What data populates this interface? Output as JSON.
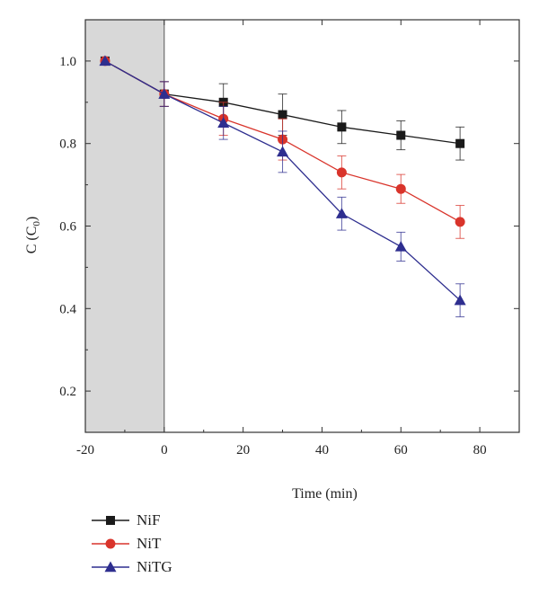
{
  "chart_data": {
    "type": "line",
    "xlabel": "Time (min)",
    "ylabel_main": "C (C",
    "ylabel_sub": "0",
    "ylabel_close": ")",
    "xlim": [
      -20,
      90
    ],
    "ylim": [
      0.1,
      1.1
    ],
    "xticks": [
      -20,
      0,
      20,
      40,
      60,
      80
    ],
    "xtick_labels": [
      "-20",
      "0",
      "20",
      "40",
      "60",
      "80"
    ],
    "yticks": [
      0.2,
      0.4,
      0.6,
      0.8,
      1.0
    ],
    "ytick_labels": [
      "0.2",
      "0.4",
      "0.6",
      "0.8",
      "1.0"
    ],
    "shaded_region": [
      -20,
      0
    ],
    "shaded_color": "#d8d8d8",
    "legend_position": "bottom-left",
    "x": [
      -15,
      0,
      15,
      30,
      45,
      60,
      75
    ],
    "series": [
      {
        "name": "NiF",
        "marker": "square",
        "color": "#1a1a1a",
        "values": [
          1.0,
          0.92,
          0.9,
          0.87,
          0.84,
          0.82,
          0.8
        ],
        "errors": [
          0.0,
          0.03,
          0.045,
          0.05,
          0.04,
          0.035,
          0.04
        ]
      },
      {
        "name": "NiT",
        "marker": "circle",
        "color": "#d9342b",
        "values": [
          1.0,
          0.92,
          0.86,
          0.81,
          0.73,
          0.69,
          0.61
        ],
        "errors": [
          0.0,
          0.03,
          0.04,
          0.05,
          0.04,
          0.035,
          0.04
        ]
      },
      {
        "name": "NiTG",
        "marker": "triangle",
        "color": "#2e2e8f",
        "values": [
          1.0,
          0.92,
          0.85,
          0.78,
          0.63,
          0.55,
          0.42
        ],
        "errors": [
          0.0,
          0.03,
          0.04,
          0.05,
          0.04,
          0.035,
          0.04
        ]
      }
    ]
  }
}
